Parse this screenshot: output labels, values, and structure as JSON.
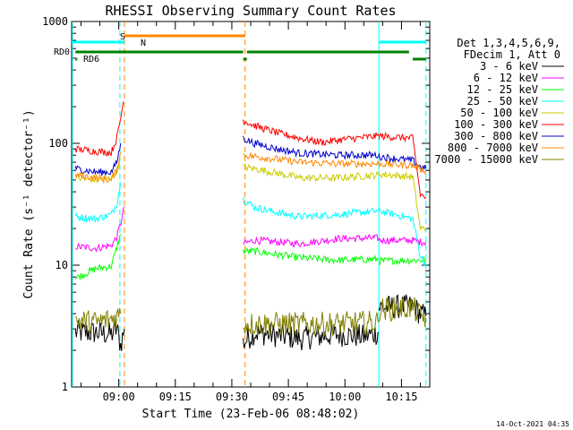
{
  "chart_data": {
    "type": "line",
    "title": "RHESSI Observing Summary Count Rates",
    "xlabel": "Start Time (23-Feb-06 08:48:02)",
    "ylabel": "Count Rate (s⁻¹ detector⁻¹)",
    "y_scale": "log",
    "ylim": [
      1,
      1000
    ],
    "xlim_minutes": [
      -12.5,
      82.5
    ],
    "x_ticks": [
      {
        "t": 0,
        "label": "09:00"
      },
      {
        "t": 15,
        "label": "09:15"
      },
      {
        "t": 30,
        "label": "09:30"
      },
      {
        "t": 45,
        "label": "09:45"
      },
      {
        "t": 60,
        "label": "10:00"
      },
      {
        "t": 75,
        "label": "10:15"
      }
    ],
    "y_ticks": [
      {
        "v": 1,
        "label": "1"
      },
      {
        "v": 10,
        "label": "10"
      },
      {
        "v": 100,
        "label": "100"
      },
      {
        "v": 1000,
        "label": "1000"
      }
    ],
    "legend_header": [
      "Det 1,3,4,5,6,9,",
      "FDecim 1, Att 0"
    ],
    "legend_position": "right",
    "series": [
      {
        "name": "3 - 6 keV",
        "color": "#000000",
        "points": [
          [
            -11.5,
            2.8
          ],
          [
            -6,
            2.8
          ],
          [
            -2,
            2.7
          ],
          [
            -0.5,
            3.0
          ],
          [
            0.5,
            2.2
          ],
          [
            1.5,
            3.0
          ]
        ],
        "points2": [
          [
            33,
            2.3
          ],
          [
            36,
            2.8
          ],
          [
            48,
            2.5
          ],
          [
            58,
            2.7
          ],
          [
            65,
            2.6
          ],
          [
            69,
            2.8
          ]
        ],
        "points3": [
          [
            69,
            4.5
          ],
          [
            78,
            4.6
          ],
          [
            80,
            4.0
          ],
          [
            81.5,
            3.8
          ]
        ]
      },
      {
        "name": "6 - 12 keV",
        "color": "#ff00ff",
        "points": [
          [
            -11.5,
            14.2
          ],
          [
            -6,
            13.8
          ],
          [
            -2,
            14.5
          ],
          [
            -0.5,
            17
          ],
          [
            0.5,
            22
          ],
          [
            1.5,
            30
          ]
        ],
        "points2": [
          [
            33,
            15
          ],
          [
            36,
            16
          ],
          [
            48,
            15
          ],
          [
            58,
            16.5
          ],
          [
            69,
            16.7
          ]
        ],
        "points3": [
          [
            69,
            16
          ],
          [
            78,
            16
          ],
          [
            80,
            15.5
          ],
          [
            81.5,
            15.5
          ]
        ]
      },
      {
        "name": "12 - 25 keV",
        "color": "#00ff00",
        "points": [
          [
            -11.5,
            7.8
          ],
          [
            -6,
            9.4
          ],
          [
            -2,
            9.8
          ],
          [
            -0.5,
            14
          ],
          [
            0.5,
            18
          ]
        ],
        "points2": [
          [
            33,
            13
          ],
          [
            36,
            13
          ],
          [
            48,
            11.5
          ],
          [
            58,
            11
          ],
          [
            69,
            11.2
          ]
        ],
        "points3": [
          [
            69,
            10.8
          ],
          [
            78,
            11
          ],
          [
            80,
            11
          ],
          [
            81.5,
            11
          ]
        ]
      },
      {
        "name": "25 - 50 keV",
        "color": "#00ffff",
        "points": [
          [
            -11.5,
            25
          ],
          [
            -6,
            24
          ],
          [
            -2,
            26
          ],
          [
            -0.5,
            32
          ],
          [
            0.5,
            48
          ]
        ],
        "points2": [
          [
            33,
            35
          ],
          [
            36,
            30
          ],
          [
            42,
            27
          ],
          [
            48,
            25
          ],
          [
            58,
            26
          ],
          [
            69,
            28
          ]
        ],
        "points3": [
          [
            69,
            28
          ],
          [
            78,
            24
          ],
          [
            80,
            12
          ],
          [
            81.5,
            10
          ]
        ]
      },
      {
        "name": "50 - 100 keV",
        "color": "#cccc00",
        "points": [
          [
            -11.5,
            52
          ],
          [
            -6,
            50
          ],
          [
            -2,
            52
          ],
          [
            -0.5,
            60
          ],
          [
            0.5,
            75
          ]
        ],
        "points2": [
          [
            33,
            64
          ],
          [
            36,
            62
          ],
          [
            42,
            57
          ],
          [
            48,
            52
          ],
          [
            58,
            52
          ],
          [
            69,
            55
          ]
        ],
        "points3": [
          [
            69,
            56
          ],
          [
            78,
            53
          ],
          [
            80,
            20
          ],
          [
            81.5,
            20
          ]
        ]
      },
      {
        "name": "100 - 300 keV",
        "color": "#ff0000",
        "points": [
          [
            -11.5,
            90
          ],
          [
            -6,
            86
          ],
          [
            -2,
            84
          ],
          [
            -0.5,
            110
          ],
          [
            0.5,
            160
          ],
          [
            1.2,
            220
          ]
        ],
        "points2": [
          [
            33,
            155
          ],
          [
            36,
            140
          ],
          [
            42,
            122
          ],
          [
            48,
            110
          ],
          [
            54,
            102
          ],
          [
            60,
            108
          ],
          [
            69,
            115
          ]
        ],
        "points3": [
          [
            69,
            115
          ],
          [
            78,
            110
          ],
          [
            80,
            38
          ],
          [
            81.5,
            36
          ]
        ]
      },
      {
        "name": "300 - 800 keV",
        "color": "#0000cc",
        "points": [
          [
            -11.5,
            62
          ],
          [
            -6,
            58
          ],
          [
            -2,
            58
          ],
          [
            -0.5,
            70
          ],
          [
            0.5,
            100
          ]
        ],
        "points2": [
          [
            33,
            110
          ],
          [
            36,
            100
          ],
          [
            42,
            90
          ],
          [
            48,
            83
          ],
          [
            58,
            80
          ],
          [
            69,
            80
          ]
        ],
        "points3": [
          [
            69,
            78
          ],
          [
            78,
            72
          ],
          [
            80,
            64
          ],
          [
            81.5,
            62
          ]
        ]
      },
      {
        "name": "800 - 7000 keV",
        "color": "#ff8800",
        "points": [
          [
            -11.5,
            55
          ],
          [
            -6,
            52
          ],
          [
            -2,
            50
          ],
          [
            -0.5,
            60
          ],
          [
            0.5,
            85
          ]
        ],
        "points2": [
          [
            33,
            80
          ],
          [
            36,
            78
          ],
          [
            42,
            74
          ],
          [
            48,
            70
          ],
          [
            58,
            68
          ],
          [
            69,
            68
          ]
        ],
        "points3": [
          [
            69,
            68
          ],
          [
            78,
            66
          ],
          [
            80,
            62
          ],
          [
            81.5,
            60
          ]
        ]
      },
      {
        "name": "7000 - 15000 keV",
        "color": "#808000",
        "points": [
          [
            -11.5,
            3.5
          ],
          [
            -6,
            3.4
          ],
          [
            -2,
            3.6
          ],
          [
            0.5,
            4
          ]
        ],
        "points2": [
          [
            33,
            3.3
          ],
          [
            36,
            3.3
          ],
          [
            48,
            3.3
          ],
          [
            58,
            3.3
          ],
          [
            69,
            3.4
          ]
        ],
        "points3": [
          [
            69,
            4.3
          ],
          [
            78,
            4.5
          ],
          [
            80,
            3.8
          ],
          [
            81.5,
            3.7
          ]
        ]
      }
    ],
    "state_bars": [
      {
        "label": "S",
        "color": "#ff8800",
        "segments": [
          [
            1.5,
            33.5
          ]
        ]
      },
      {
        "label": "N",
        "color": "#00ffff",
        "segments": [
          [
            -12.5,
            1.5
          ],
          [
            69,
            81.5
          ]
        ]
      },
      {
        "label": "RD0",
        "color": "#008000",
        "segments": [
          [
            -11.5,
            33
          ],
          [
            34,
            77
          ]
        ]
      },
      {
        "label": "RD6",
        "color": "#008000",
        "segments": [
          [
            -11.5,
            -11.0
          ],
          [
            33,
            34
          ],
          [
            78,
            81.5
          ]
        ]
      }
    ],
    "vlines": [
      {
        "t": -12.3,
        "color": "#00ffff",
        "dash": false
      },
      {
        "t": 0.3,
        "color": "#00ffff",
        "dash": true
      },
      {
        "t": 1.5,
        "color": "#ff8800",
        "dash": true
      },
      {
        "t": 33.5,
        "color": "#ff8800",
        "dash": true
      },
      {
        "t": 69.0,
        "color": "#00ffff",
        "dash": false
      },
      {
        "t": 81.5,
        "color": "#00ffff",
        "dash": true
      }
    ]
  },
  "footer": {
    "timestamp": "14-Oct-2021 04:35"
  }
}
